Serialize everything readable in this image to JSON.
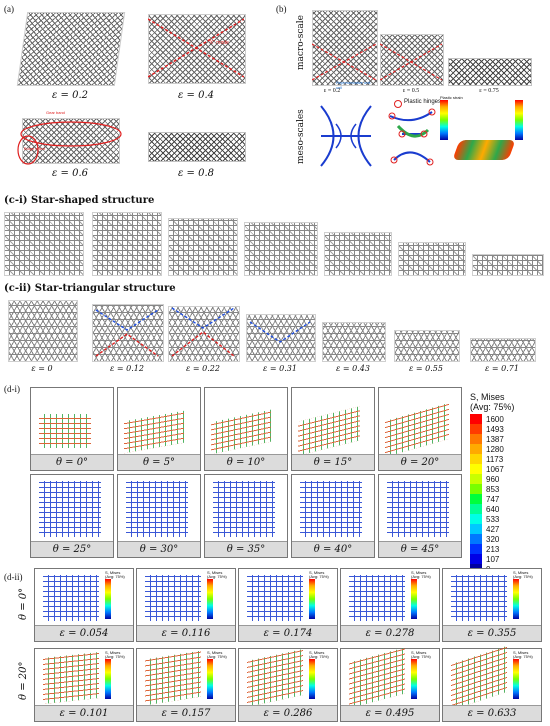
{
  "panel_a": {
    "label": "(a)",
    "frames": [
      {
        "strain": "ε = 0.2"
      },
      {
        "strain": "ε = 0.4",
        "annotation": "\"X\" mode"
      },
      {
        "strain": "ε = 0.6",
        "annotation_1": "Gear band",
        "annotation_2": "Bulge effect"
      },
      {
        "strain": "ε = 0.8"
      }
    ]
  },
  "panel_b": {
    "label": "(b)",
    "macro_label": "macro-scale",
    "meso_label": "meso-scales",
    "macro_frames": [
      {
        "strain": "ε = 0.2",
        "annotation": "Representative unit cell"
      },
      {
        "strain": "ε = 0.5"
      },
      {
        "strain": "ε = 0.75"
      }
    ],
    "plastic_hinges_label": "Plastic hinges",
    "legend_title": "Plastic strain"
  },
  "panel_ci": {
    "title": "(c-i) Star-shaped structure"
  },
  "panel_cii": {
    "title": "(c-ii) Star-triangular structure",
    "strains": [
      "ε = 0",
      "ε = 0.12",
      "ε = 0.22",
      "ε = 0.31",
      "ε = 0.43",
      "ε = 0.55",
      "ε = 0.71"
    ]
  },
  "panel_di": {
    "label": "(d-i)",
    "angles": [
      "θ = 0°",
      "θ = 5°",
      "θ = 10°",
      "θ = 15°",
      "θ = 20°",
      "θ = 25°",
      "θ = 30°",
      "θ = 35°",
      "θ = 40°",
      "θ = 45°"
    ],
    "legend_title_1": "S, Mises",
    "legend_title_2": "(Avg: 75%)",
    "legend_values": [
      "1600",
      "1493",
      "1387",
      "1280",
      "1173",
      "1067",
      "960",
      "853",
      "747",
      "640",
      "533",
      "427",
      "320",
      "213",
      "107",
      "0"
    ],
    "legend_colors": [
      "#ff0000",
      "#ff3c00",
      "#ff7800",
      "#ffaa00",
      "#ffd700",
      "#ffff00",
      "#c8ff00",
      "#78ff00",
      "#00ff3c",
      "#00ff96",
      "#00ffe6",
      "#00c8ff",
      "#0078ff",
      "#0032ff",
      "#0000e6",
      "#0000a0"
    ]
  },
  "panel_dii": {
    "label": "(d-ii)",
    "row_labels": [
      "θ = 0°",
      "θ = 20°"
    ],
    "row1_strains": [
      "ε = 0.054",
      "ε = 0.116",
      "ε = 0.174",
      "ε = 0.278",
      "ε = 0.355"
    ],
    "row2_strains": [
      "ε = 0.101",
      "ε = 0.157",
      "ε = 0.286",
      "ε = 0.495",
      "ε = 0.633"
    ],
    "mini_legend_title_1": "S, Mises",
    "mini_legend_title_2": "(Avg: 75%)"
  }
}
